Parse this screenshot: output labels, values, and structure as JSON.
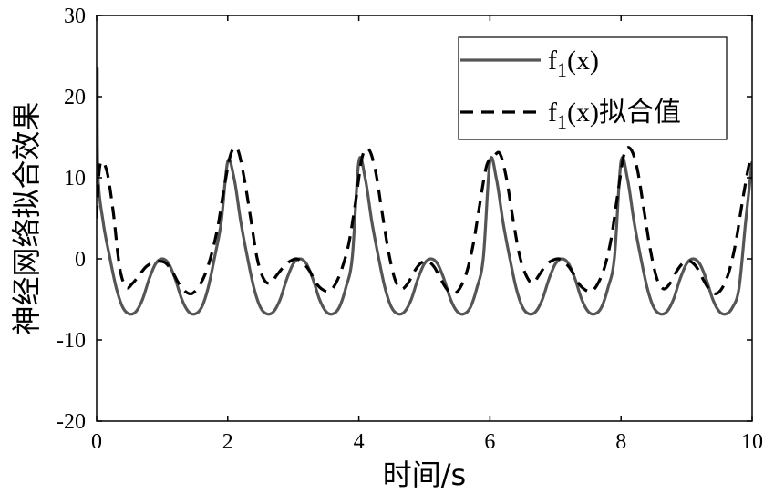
{
  "chart_data": {
    "type": "line",
    "xlabel": "时间/s",
    "ylabel": "神经网络拟合效果",
    "xlim": [
      0,
      10
    ],
    "ylim": [
      -20,
      30
    ],
    "xticks": [
      0,
      2,
      4,
      6,
      8,
      10
    ],
    "yticks": [
      -20,
      -10,
      0,
      10,
      20,
      30
    ],
    "grid": false,
    "legend_position": "top-right",
    "series": [
      {
        "name": "f1(x)",
        "name_base": "f",
        "name_sub": "1",
        "name_rest": "(x)",
        "style": "solid",
        "color": "#555555",
        "points": [
          [
            0,
            12
          ],
          [
            0.01,
            23.5
          ],
          [
            0.02,
            10.5
          ],
          [
            0.1,
            4.5
          ],
          [
            0.2,
            0.2
          ],
          [
            0.3,
            -3.6
          ],
          [
            0.4,
            -6
          ],
          [
            0.5,
            -6.8
          ],
          [
            0.6,
            -6.5
          ],
          [
            0.7,
            -5
          ],
          [
            0.8,
            -2.5
          ],
          [
            0.9,
            -0.6
          ],
          [
            1.0,
            0
          ],
          [
            1.1,
            -0.6
          ],
          [
            1.2,
            -2.5
          ],
          [
            1.3,
            -5
          ],
          [
            1.4,
            -6.5
          ],
          [
            1.5,
            -6.8
          ],
          [
            1.6,
            -6
          ],
          [
            1.7,
            -3.6
          ],
          [
            1.8,
            0.2
          ],
          [
            1.9,
            4.5
          ],
          [
            2.0,
            12
          ],
          [
            2.1,
            9.8
          ],
          [
            2.2,
            4.5
          ],
          [
            2.3,
            0.2
          ],
          [
            2.4,
            -3.6
          ],
          [
            2.5,
            -6
          ],
          [
            2.6,
            -6.8
          ],
          [
            2.7,
            -6.5
          ],
          [
            2.8,
            -5
          ],
          [
            2.9,
            -2.5
          ],
          [
            3.0,
            -0.6
          ],
          [
            3.1,
            0
          ],
          [
            3.2,
            -0.6
          ],
          [
            3.3,
            -2.5
          ],
          [
            3.4,
            -5
          ],
          [
            3.5,
            -6.5
          ],
          [
            3.6,
            -6.8
          ],
          [
            3.7,
            -6
          ],
          [
            3.8,
            -3.6
          ],
          [
            3.9,
            0.2
          ],
          [
            4.0,
            12
          ],
          [
            4.1,
            9.8
          ],
          [
            4.2,
            4.5
          ],
          [
            4.3,
            0.2
          ],
          [
            4.4,
            -3.6
          ],
          [
            4.5,
            -6
          ],
          [
            4.6,
            -6.8
          ],
          [
            4.7,
            -6.5
          ],
          [
            4.8,
            -5
          ],
          [
            4.9,
            -2.5
          ],
          [
            5.0,
            -0.6
          ],
          [
            5.1,
            0
          ],
          [
            5.2,
            -0.6
          ],
          [
            5.3,
            -2.5
          ],
          [
            5.4,
            -5
          ],
          [
            5.5,
            -6.5
          ],
          [
            5.6,
            -6.8
          ],
          [
            5.7,
            -6
          ],
          [
            5.8,
            -3.6
          ],
          [
            5.9,
            0.2
          ],
          [
            6.0,
            12
          ],
          [
            6.1,
            9.8
          ],
          [
            6.2,
            4.5
          ],
          [
            6.3,
            0.2
          ],
          [
            6.4,
            -3.6
          ],
          [
            6.5,
            -6
          ],
          [
            6.6,
            -6.8
          ],
          [
            6.7,
            -6.5
          ],
          [
            6.8,
            -5
          ],
          [
            6.9,
            -2.5
          ],
          [
            7.0,
            -0.6
          ],
          [
            7.1,
            0
          ],
          [
            7.2,
            -0.6
          ],
          [
            7.3,
            -2.5
          ],
          [
            7.4,
            -5
          ],
          [
            7.5,
            -6.5
          ],
          [
            7.6,
            -6.8
          ],
          [
            7.7,
            -6
          ],
          [
            7.8,
            -3.6
          ],
          [
            7.9,
            0.2
          ],
          [
            8.0,
            12
          ],
          [
            8.1,
            9.8
          ],
          [
            8.2,
            4.5
          ],
          [
            8.3,
            0.2
          ],
          [
            8.4,
            -3.6
          ],
          [
            8.5,
            -6
          ],
          [
            8.6,
            -6.8
          ],
          [
            8.7,
            -6.5
          ],
          [
            8.8,
            -5
          ],
          [
            8.9,
            -2.5
          ],
          [
            9.0,
            -0.6
          ],
          [
            9.1,
            0
          ],
          [
            9.2,
            -0.6
          ],
          [
            9.3,
            -2.5
          ],
          [
            9.4,
            -5
          ],
          [
            9.5,
            -6.5
          ],
          [
            9.6,
            -6.8
          ],
          [
            9.7,
            -6
          ],
          [
            9.8,
            -3.6
          ],
          [
            9.9,
            4.5
          ],
          [
            10.0,
            12
          ]
        ]
      },
      {
        "name": "f1(x)拟合值",
        "name_base": "f",
        "name_sub": "1",
        "name_rest": "(x)拟合值",
        "style": "dashed",
        "color": "#000000",
        "points": [
          [
            0,
            5
          ],
          [
            0.05,
            11.5
          ],
          [
            0.15,
            11
          ],
          [
            0.25,
            6
          ],
          [
            0.35,
            -1
          ],
          [
            0.45,
            -3.5
          ],
          [
            0.55,
            -3
          ],
          [
            0.65,
            -2
          ],
          [
            0.75,
            -1
          ],
          [
            0.85,
            -0.5
          ],
          [
            0.95,
            -0.3
          ],
          [
            1.05,
            -0.5
          ],
          [
            1.15,
            -1.5
          ],
          [
            1.25,
            -3
          ],
          [
            1.35,
            -4
          ],
          [
            1.45,
            -4.3
          ],
          [
            1.55,
            -3.5
          ],
          [
            1.65,
            -2
          ],
          [
            1.75,
            0.5
          ],
          [
            1.85,
            4
          ],
          [
            1.95,
            9
          ],
          [
            2.05,
            13
          ],
          [
            2.15,
            13.5
          ],
          [
            2.25,
            10
          ],
          [
            2.35,
            5
          ],
          [
            2.45,
            0
          ],
          [
            2.55,
            -2.5
          ],
          [
            2.65,
            -3
          ],
          [
            2.75,
            -2
          ],
          [
            2.85,
            -1
          ],
          [
            2.95,
            -0.3
          ],
          [
            3.05,
            0
          ],
          [
            3.15,
            -0.5
          ],
          [
            3.25,
            -1.5
          ],
          [
            3.35,
            -3
          ],
          [
            3.45,
            -3.8
          ],
          [
            3.55,
            -4
          ],
          [
            3.65,
            -3
          ],
          [
            3.75,
            -1
          ],
          [
            3.85,
            2
          ],
          [
            3.95,
            7
          ],
          [
            4.05,
            12.5
          ],
          [
            4.15,
            13.5
          ],
          [
            4.25,
            11
          ],
          [
            4.35,
            6
          ],
          [
            4.45,
            1
          ],
          [
            4.55,
            -2.5
          ],
          [
            4.65,
            -3.7
          ],
          [
            4.75,
            -3
          ],
          [
            4.85,
            -1.5
          ],
          [
            4.95,
            -0.5
          ],
          [
            5.05,
            -0.3
          ],
          [
            5.15,
            -1
          ],
          [
            5.25,
            -2.5
          ],
          [
            5.35,
            -3.8
          ],
          [
            5.45,
            -4.3
          ],
          [
            5.55,
            -3.5
          ],
          [
            5.65,
            -1.5
          ],
          [
            5.75,
            2
          ],
          [
            5.85,
            7
          ],
          [
            5.95,
            11.5
          ],
          [
            6.05,
            12.5
          ],
          [
            6.15,
            13
          ],
          [
            6.25,
            10
          ],
          [
            6.35,
            5
          ],
          [
            6.45,
            0.5
          ],
          [
            6.55,
            -2
          ],
          [
            6.65,
            -3
          ],
          [
            6.75,
            -2
          ],
          [
            6.85,
            -0.8
          ],
          [
            6.95,
            -0.2
          ],
          [
            7.05,
            0
          ],
          [
            7.15,
            -0.5
          ],
          [
            7.25,
            -1.5
          ],
          [
            7.35,
            -3
          ],
          [
            7.45,
            -3.8
          ],
          [
            7.55,
            -4
          ],
          [
            7.65,
            -3
          ],
          [
            7.75,
            -1
          ],
          [
            7.85,
            2.5
          ],
          [
            7.95,
            8
          ],
          [
            8.05,
            13
          ],
          [
            8.15,
            13.5
          ],
          [
            8.25,
            11
          ],
          [
            8.35,
            6
          ],
          [
            8.45,
            1
          ],
          [
            8.55,
            -2.5
          ],
          [
            8.65,
            -3.7
          ],
          [
            8.75,
            -3
          ],
          [
            8.85,
            -1.5
          ],
          [
            8.95,
            -0.5
          ],
          [
            9.05,
            -0.3
          ],
          [
            9.15,
            -1
          ],
          [
            9.25,
            -2.5
          ],
          [
            9.35,
            -3.8
          ],
          [
            9.45,
            -4.3
          ],
          [
            9.55,
            -3.5
          ],
          [
            9.65,
            -1.5
          ],
          [
            9.75,
            2
          ],
          [
            9.85,
            7
          ],
          [
            9.95,
            11.5
          ],
          [
            10.0,
            12.5
          ]
        ]
      }
    ]
  }
}
